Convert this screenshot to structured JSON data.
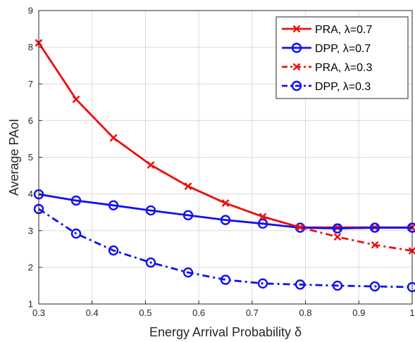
{
  "chart_data": {
    "type": "line",
    "xlabel": "Energy Arrival Probability δ",
    "ylabel": "Average PAoI",
    "xlim": [
      0.3,
      1.0
    ],
    "ylim": [
      1,
      9
    ],
    "xticks": [
      "0.3",
      "0.4",
      "0.5",
      "0.6",
      "0.7",
      "0.8",
      "0.9",
      "1"
    ],
    "yticks": [
      "1",
      "2",
      "3",
      "4",
      "5",
      "6",
      "7",
      "8",
      "9"
    ],
    "grid": true,
    "legend_position": "top-right",
    "x": [
      0.3,
      0.37,
      0.44,
      0.51,
      0.58,
      0.65,
      0.72,
      0.79,
      0.86,
      0.93,
      1.0
    ],
    "series": [
      {
        "name": "PRA, λ=0.7",
        "values": [
          8.12,
          6.58,
          5.53,
          4.79,
          4.21,
          3.75,
          3.38,
          3.09,
          3.09,
          3.09,
          3.09
        ],
        "color": "#ee1111",
        "line_style": "solid",
        "marker": "x"
      },
      {
        "name": "DPP, λ=0.7",
        "values": [
          3.99,
          3.82,
          3.69,
          3.55,
          3.42,
          3.29,
          3.19,
          3.08,
          3.06,
          3.08,
          3.08
        ],
        "color": "#1111ee",
        "line_style": "solid",
        "marker": "o"
      },
      {
        "name": "PRA, λ=0.3",
        "values": [
          8.12,
          6.58,
          5.53,
          4.79,
          4.21,
          3.75,
          3.38,
          3.09,
          2.83,
          2.61,
          2.45
        ],
        "color": "#ee1111",
        "line_style": "dashdot",
        "marker": "x"
      },
      {
        "name": "DPP, λ=0.3",
        "values": [
          3.59,
          2.92,
          2.46,
          2.13,
          1.86,
          1.66,
          1.56,
          1.53,
          1.5,
          1.48,
          1.46
        ],
        "color": "#1111ee",
        "line_style": "dashdot",
        "marker": "o"
      }
    ]
  }
}
